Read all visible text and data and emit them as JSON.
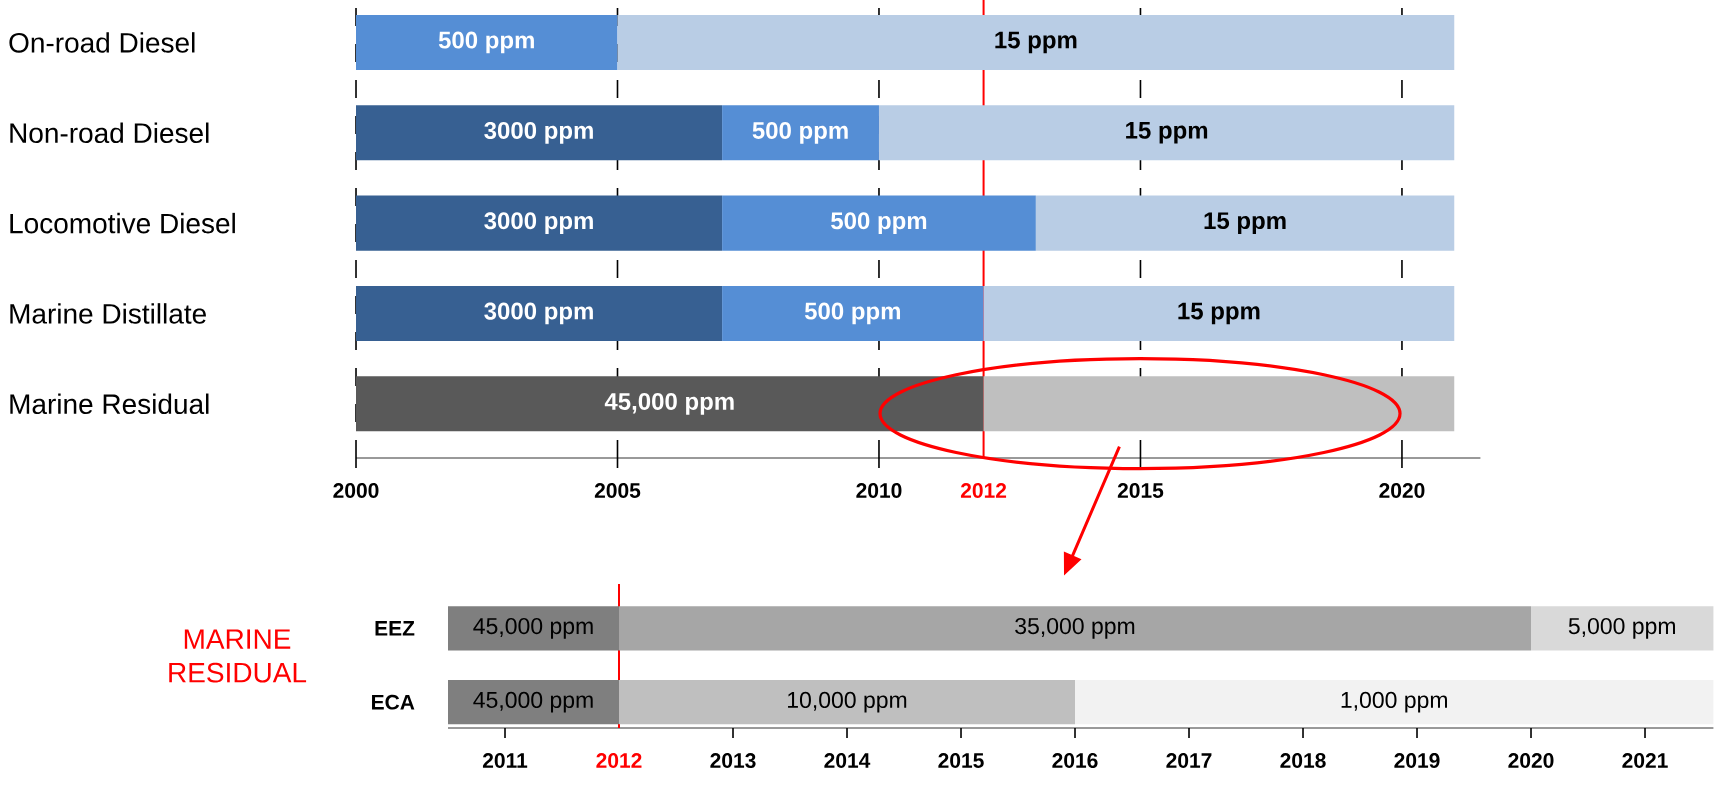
{
  "chart_data": [
    {
      "type": "bar",
      "orientation": "horizontal",
      "categories": [
        "On-road Diesel",
        "Non-road Diesel",
        "Locomotive Diesel",
        "Marine Distillate",
        "Marine Residual"
      ],
      "xlim": [
        2000,
        2021.5
      ],
      "xticks": [
        2000,
        2005,
        2010,
        2015,
        2020
      ],
      "grid": "x",
      "ref_lines": [
        {
          "axis": "x",
          "value": 2012,
          "label": "2012",
          "color": "#ff0000"
        }
      ],
      "series": [
        {
          "base": [
            2000,
            2000,
            2000,
            2000,
            2000
          ],
          "values": [
            5,
            7,
            7,
            7,
            12
          ],
          "colors": [
            "#558ed5",
            "#376092",
            "#376092",
            "#376092",
            "#595959"
          ]
        },
        {
          "base": [
            2005,
            2007,
            2007,
            2007,
            2012
          ],
          "values": [
            16,
            3,
            6,
            5,
            9
          ],
          "colors": [
            "#b9cde5",
            "#558ed5",
            "#558ed5",
            "#558ed5",
            "#bfbfbf"
          ]
        },
        {
          "base": [
            null,
            2010,
            2013,
            2012,
            null
          ],
          "values": [
            null,
            11,
            8,
            9,
            null
          ],
          "colors": [
            null,
            "#b9cde5",
            "#b9cde5",
            "#b9cde5",
            null
          ]
        }
      ],
      "annotations": [
        "500 ppm",
        "15 ppm",
        "3000 ppm",
        "500 ppm",
        "15 ppm",
        "3000 ppm",
        "500 ppm",
        "15 ppm",
        "3000 ppm",
        "500 ppm",
        "15 ppm",
        "45,000 ppm"
      ]
    },
    {
      "type": "bar",
      "orientation": "horizontal",
      "ylabel": "MARINE RESIDUAL",
      "categories": [
        "EEZ",
        "ECA"
      ],
      "xlim": [
        2010.5,
        2021.6
      ],
      "xticks": [
        2011,
        2013,
        2014,
        2015,
        2016,
        2017,
        2018,
        2019,
        2020,
        2021
      ],
      "grid": false,
      "ref_lines": [
        {
          "axis": "x",
          "value": 2012,
          "label": "2012",
          "color": "#ff0000"
        }
      ],
      "series": [
        {
          "base": [
            2010.5,
            2010.5
          ],
          "values": [
            1.5,
            1.5
          ],
          "colors": [
            "#7f7f7f",
            "#7f7f7f"
          ]
        },
        {
          "base": [
            2012,
            2012
          ],
          "values": [
            8,
            4
          ],
          "colors": [
            "#a6a6a6",
            "#bfbfbf"
          ]
        },
        {
          "base": [
            2020,
            2016
          ],
          "values": [
            1.6,
            5.6
          ],
          "colors": [
            "#d9d9d9",
            "#f2f2f2"
          ]
        }
      ],
      "annotations": [
        "45,000 ppm",
        "35,000 ppm",
        "5,000 ppm",
        "45,000 ppm",
        "10,000 ppm",
        "1,000 ppm"
      ]
    }
  ]
}
